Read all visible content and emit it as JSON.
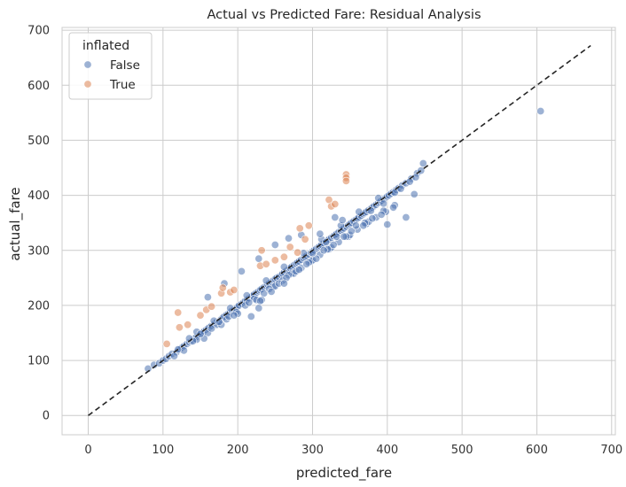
{
  "chart_data": {
    "type": "scatter",
    "title": "Actual vs Predicted Fare: Residual Analysis",
    "xlabel": "predicted_fare",
    "ylabel": "actual_fare",
    "xlim": [
      -35,
      705
    ],
    "ylim": [
      -35,
      705
    ],
    "xticks": [
      "0",
      "100",
      "200",
      "300",
      "400",
      "500",
      "600",
      "700"
    ],
    "yticks": [
      "0",
      "100",
      "200",
      "300",
      "400",
      "500",
      "600",
      "700"
    ],
    "grid": true,
    "legend": {
      "title": "inflated",
      "placement": "top-left"
    },
    "reference_line": {
      "style": "dashed",
      "color": "#262626",
      "x": [
        0,
        672
      ],
      "y": [
        0,
        672
      ]
    },
    "series": [
      {
        "name": "False",
        "color": "#4c72b0",
        "x": [
          80,
          88,
          95,
          100,
          104,
          108,
          112,
          118,
          122,
          125,
          128,
          132,
          135,
          138,
          140,
          142,
          145,
          148,
          150,
          152,
          155,
          158,
          160,
          162,
          165,
          168,
          170,
          172,
          175,
          178,
          180,
          182,
          185,
          188,
          190,
          192,
          195,
          198,
          200,
          202,
          205,
          208,
          210,
          212,
          215,
          218,
          220,
          222,
          225,
          228,
          230,
          232,
          235,
          238,
          240,
          242,
          245,
          248,
          250,
          252,
          255,
          258,
          260,
          262,
          265,
          268,
          270,
          272,
          275,
          278,
          280,
          282,
          285,
          288,
          290,
          292,
          295,
          298,
          300,
          302,
          305,
          308,
          310,
          312,
          315,
          318,
          320,
          322,
          325,
          328,
          330,
          332,
          335,
          338,
          340,
          342,
          345,
          348,
          350,
          352,
          355,
          358,
          360,
          362,
          365,
          368,
          370,
          372,
          375,
          378,
          380,
          382,
          385,
          388,
          390,
          392,
          395,
          398,
          400,
          402,
          405,
          408,
          412,
          415,
          420,
          425,
          432,
          440,
          445,
          448,
          128,
          145,
          160,
          172,
          185,
          198,
          210,
          222,
          235,
          248,
          260,
          272,
          285,
          298,
          310,
          322,
          335,
          348,
          360,
          372,
          385,
          398,
          410,
          145,
          168,
          190,
          212,
          238,
          262,
          288,
          312,
          338,
          362,
          388,
          155,
          178,
          200,
          225,
          250,
          275,
          300,
          325,
          350,
          375,
          140,
          165,
          188,
          215,
          242,
          268,
          295,
          320,
          345,
          370,
          395,
          218,
          228,
          232,
          245,
          255,
          265,
          278,
          292,
          305,
          315,
          328,
          342,
          352,
          368,
          380,
          392,
          408,
          605,
          400,
          425,
          436,
          330,
          340,
          310,
          285,
          268,
          250,
          228,
          205,
          182,
          160,
          115,
          120,
          135,
          150,
          175,
          195,
          230,
          262,
          282,
          300,
          318,
          332,
          358,
          378,
          395,
          410,
          418,
          430,
          438
        ],
        "y": [
          85,
          92,
          95,
          100,
          103,
          108,
          112,
          115,
          120,
          123,
          126,
          130,
          133,
          135,
          138,
          140,
          143,
          146,
          148,
          150,
          153,
          156,
          158,
          160,
          163,
          166,
          168,
          170,
          172,
          175,
          178,
          180,
          183,
          186,
          188,
          190,
          192,
          195,
          198,
          200,
          203,
          206,
          208,
          210,
          213,
          216,
          218,
          220,
          223,
          226,
          228,
          230,
          233,
          236,
          238,
          240,
          243,
          246,
          248,
          250,
          252,
          255,
          258,
          260,
          263,
          266,
          268,
          270,
          273,
          276,
          278,
          280,
          283,
          286,
          288,
          290,
          293,
          296,
          298,
          300,
          303,
          306,
          308,
          310,
          313,
          316,
          318,
          320,
          323,
          326,
          328,
          330,
          333,
          336,
          338,
          340,
          343,
          346,
          348,
          350,
          353,
          356,
          358,
          360,
          363,
          366,
          368,
          370,
          373,
          376,
          378,
          380,
          383,
          386,
          388,
          390,
          393,
          396,
          398,
          400,
          403,
          406,
          410,
          413,
          418,
          422,
          430,
          440,
          445,
          458,
          118,
          138,
          150,
          165,
          175,
          188,
          200,
          212,
          222,
          235,
          245,
          258,
          268,
          280,
          292,
          302,
          315,
          325,
          338,
          348,
          360,
          370,
          382,
          152,
          172,
          195,
          218,
          245,
          270,
          295,
          320,
          345,
          370,
          395,
          140,
          165,
          185,
          210,
          235,
          258,
          282,
          305,
          328,
          352,
          135,
          158,
          180,
          205,
          230,
          255,
          278,
          302,
          325,
          350,
          372,
          180,
          195,
          210,
          225,
          240,
          250,
          262,
          275,
          285,
          300,
          310,
          325,
          335,
          345,
          358,
          365,
          378,
          553,
          347,
          360,
          402,
          360,
          355,
          330,
          328,
          322,
          310,
          285,
          262,
          240,
          215,
          108,
          120,
          140,
          148,
          170,
          182,
          208,
          240,
          265,
          295,
          315,
          325,
          345,
          372,
          385,
          405,
          412,
          425,
          433
        ]
      },
      {
        "name": "True",
        "color": "#dd8452",
        "x": [
          105,
          122,
          120,
          133,
          150,
          158,
          165,
          178,
          180,
          190,
          195,
          230,
          232,
          238,
          250,
          262,
          270,
          280,
          283,
          290,
          295,
          322,
          325,
          330,
          345,
          345,
          345
        ],
        "y": [
          130,
          160,
          187,
          165,
          182,
          192,
          198,
          222,
          232,
          224,
          228,
          272,
          300,
          275,
          282,
          288,
          306,
          296,
          340,
          320,
          345,
          392,
          380,
          384,
          438,
          432,
          426
        ]
      }
    ]
  }
}
